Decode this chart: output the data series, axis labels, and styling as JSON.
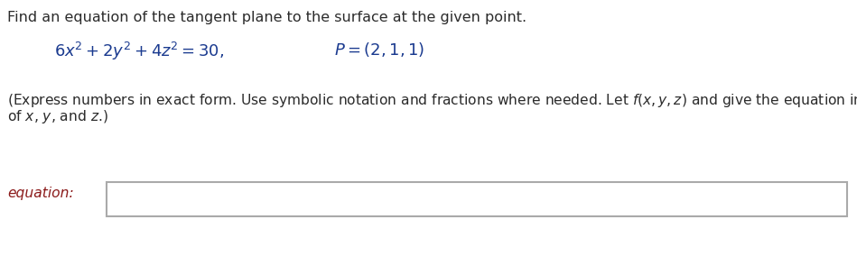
{
  "bg_color": "#ffffff",
  "title_text": "Find an equation of the tangent plane to the surface at the given point.",
  "title_color": "#2b2b2b",
  "title_fontsize": 11.5,
  "equation_color": "#1a3a8f",
  "equation_fontsize": 13.0,
  "note_color": "#2b2b2b",
  "note_fontsize": 11.2,
  "label_color": "#8b1a1a",
  "label_fontsize": 11.2,
  "equation_label": "equation:"
}
